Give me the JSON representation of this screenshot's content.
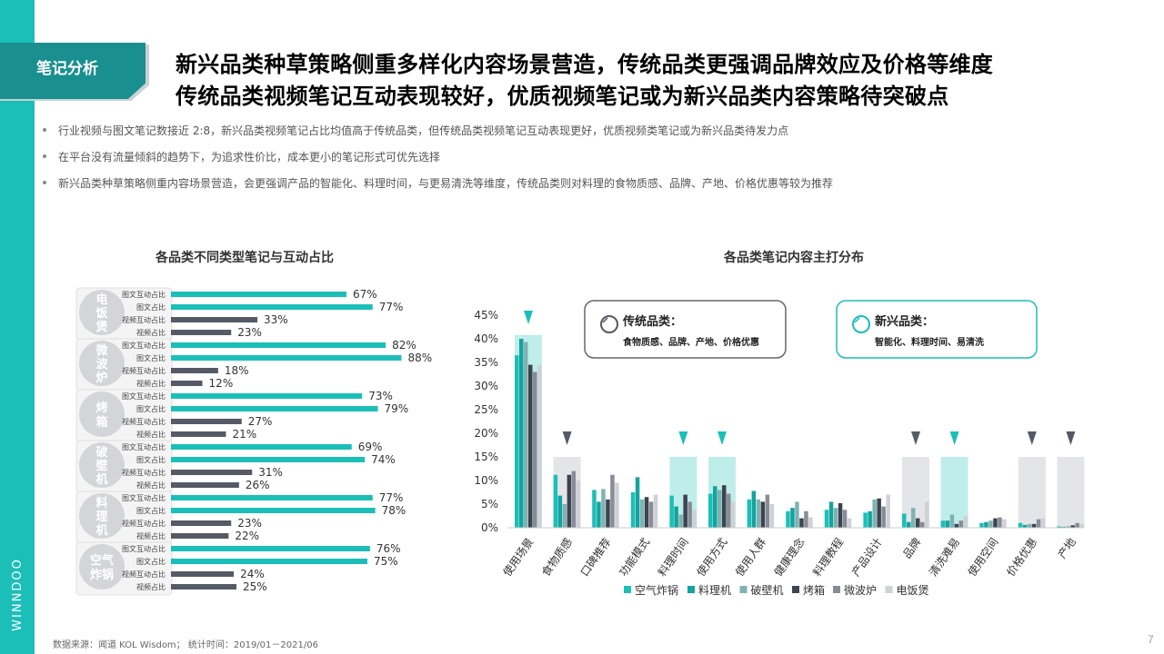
{
  "brand": "WINNDOO",
  "section_tag": "笔记分析",
  "title_line1": "新兴品类种草策略侧重多样化内容场景营造，传统品类更强调品牌效应及价格等维度",
  "title_line2": "传统品类视频笔记互动表现较好，优质视频笔记或为新兴品类内容策略待突破点",
  "bullets": [
    "行业视频与图文笔记数接近 2:8，新兴品类视频笔记占比均值高于传统品类，但传统品类视频笔记互动表现更好，优质视频类笔记或为新兴品类待发力点",
    "在平台没有流量倾斜的趋势下，为追求性价比，成本更小的笔记形式可优先选择",
    "新兴品类种草策略侧重内容场景营造，会更强调产品的智能化、料理时间，与更易清洗等维度，传统品类则对料理的食物质感、品牌、产地、价格优惠等较为推荐"
  ],
  "footer": "数据来源：闻道 KOL Wisdom； 统计时间：2019/01－2021/06",
  "page_number": "7",
  "colors": {
    "teal": "#1bbfb8",
    "dark": "#555a66",
    "sidebar": "#1bbfb8",
    "section_tag": "#1a8f8f"
  },
  "chart_data": [
    {
      "type": "bar",
      "orientation": "horizontal",
      "title": "各品类不同类型笔记与互动占比",
      "metrics": [
        "图文互动占比",
        "图文占比",
        "视频互动占比",
        "视频占比"
      ],
      "groups": [
        {
          "name": "电饭煲",
          "values": [
            67,
            77,
            33,
            23
          ]
        },
        {
          "name": "微波炉",
          "values": [
            82,
            88,
            18,
            12
          ]
        },
        {
          "name": "烤箱",
          "values": [
            73,
            79,
            27,
            21
          ]
        },
        {
          "name": "破壁机",
          "values": [
            69,
            74,
            31,
            26
          ]
        },
        {
          "name": "料理机",
          "values": [
            77,
            78,
            23,
            22
          ]
        },
        {
          "name": "空气炸锅",
          "values": [
            76,
            75,
            24,
            25
          ]
        }
      ],
      "value_suffix": "%",
      "colors": [
        "#1bbfb8",
        "#1bbfb8",
        "#555a66",
        "#555a66"
      ]
    },
    {
      "type": "bar",
      "title": "各品类笔记内容主打分布",
      "categories": [
        "使用场景",
        "食物质感",
        "口碑推荐",
        "功能模式",
        "料理时间",
        "使用方式",
        "使用人群",
        "健康理念",
        "料理教程",
        "产品设计",
        "品牌",
        "清洗难易",
        "使用空间",
        "价格优惠",
        "产地"
      ],
      "y_ticks": [
        "0%",
        "5%",
        "10%",
        "15%",
        "20%",
        "25%",
        "30%",
        "35%",
        "40%",
        "45%"
      ],
      "ylim": [
        0,
        45
      ],
      "series": [
        {
          "name": "空气炸锅",
          "color": "#1bbfb8",
          "values": [
            36.5,
            11.2,
            8.0,
            7.5,
            6.8,
            7.2,
            6.0,
            3.5,
            3.8,
            3.2,
            3.0,
            1.5,
            1.0,
            1.0,
            0.3
          ]
        },
        {
          "name": "料理机",
          "color": "#14a39e",
          "values": [
            40.0,
            6.8,
            5.5,
            10.7,
            4.5,
            8.8,
            7.8,
            4.2,
            5.5,
            3.5,
            1.2,
            1.5,
            1.2,
            0.6,
            0.2
          ]
        },
        {
          "name": "破壁机",
          "color": "#7fb3b3",
          "values": [
            39.3,
            5.0,
            8.2,
            6.0,
            2.8,
            8.0,
            6.0,
            5.5,
            4.2,
            6.0,
            4.2,
            2.8,
            1.5,
            0.8,
            0.3
          ]
        },
        {
          "name": "烤箱",
          "color": "#3d4350",
          "values": [
            34.5,
            11.2,
            6.0,
            6.5,
            7.0,
            9.0,
            5.5,
            2.0,
            5.2,
            6.2,
            2.0,
            0.8,
            2.0,
            0.8,
            0.5
          ]
        },
        {
          "name": "微波炉",
          "color": "#888c96",
          "values": [
            33.0,
            12.0,
            11.2,
            5.5,
            5.5,
            7.2,
            7.0,
            3.5,
            3.8,
            4.5,
            1.2,
            1.5,
            2.2,
            1.8,
            1.0
          ]
        },
        {
          "name": "电饭煲",
          "color": "#cfd1d6",
          "values": [
            34.5,
            10.0,
            9.5,
            7.0,
            3.8,
            5.5,
            5.0,
            2.2,
            2.0,
            7.0,
            5.5,
            2.5,
            1.8,
            2.0,
            0.8
          ]
        }
      ],
      "highlight_new": [
        "使用场景",
        "料理时间",
        "使用方式",
        "清洗难易"
      ],
      "highlight_traditional": [
        "食物质感",
        "品牌",
        "价格优惠",
        "产地"
      ],
      "callout_traditional": {
        "title": "传统品类：",
        "text": "食物质感、品牌、产地、价格优惠"
      },
      "callout_new": {
        "title": "新兴品类：",
        "text": "智能化、料理时间、易清洗"
      }
    }
  ]
}
